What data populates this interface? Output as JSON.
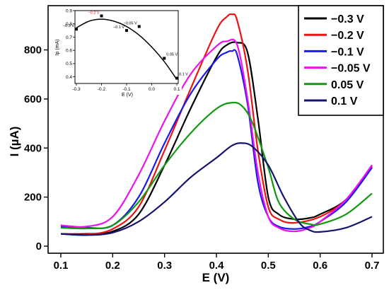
{
  "chart_data": [
    {
      "type": "line",
      "xlabel": "E (V)",
      "ylabel": "I (µA)",
      "xlim": [
        0.1,
        0.7
      ],
      "ylim": [
        0,
        940
      ],
      "xticks": [
        0.1,
        0.2,
        0.3,
        0.4,
        0.5,
        0.6,
        0.7
      ],
      "xtick_labels": [
        "0.1",
        "0.2",
        "0.3",
        "0.4",
        "0.5",
        "0.6",
        "0.7"
      ],
      "yticks": [
        0,
        200,
        400,
        600,
        800
      ],
      "ytick_labels": [
        "0",
        "200",
        "400",
        "600",
        "800"
      ],
      "grid": false,
      "legend_position": "top-right",
      "series": [
        {
          "name": "−0.3 V",
          "color": "#000000",
          "x": [
            0.1,
            0.15,
            0.2,
            0.25,
            0.3,
            0.35,
            0.4,
            0.42,
            0.44,
            0.46,
            0.48,
            0.5,
            0.52,
            0.55,
            0.58,
            0.6,
            0.65,
            0.7
          ],
          "y": [
            50,
            50,
            60,
            130,
            330,
            560,
            770,
            820,
            830,
            790,
            520,
            200,
            130,
            110,
            115,
            130,
            190,
            330
          ]
        },
        {
          "name": "−0.2 V",
          "color": "#ee1111",
          "x": [
            0.1,
            0.15,
            0.2,
            0.25,
            0.3,
            0.35,
            0.4,
            0.42,
            0.43,
            0.44,
            0.46,
            0.48,
            0.5,
            0.52,
            0.55,
            0.6,
            0.65,
            0.7
          ],
          "y": [
            50,
            48,
            70,
            160,
            390,
            640,
            880,
            935,
            945,
            920,
            720,
            390,
            160,
            110,
            95,
            120,
            190,
            325
          ]
        },
        {
          "name": "−0.1 V",
          "color": "#1a1aee",
          "x": [
            0.1,
            0.15,
            0.2,
            0.25,
            0.3,
            0.35,
            0.4,
            0.42,
            0.43,
            0.44,
            0.46,
            0.48,
            0.5,
            0.52,
            0.55,
            0.58,
            0.6,
            0.65,
            0.7
          ],
          "y": [
            80,
            75,
            85,
            200,
            420,
            620,
            760,
            790,
            795,
            780,
            580,
            260,
            120,
            80,
            70,
            80,
            100,
            180,
            320
          ]
        },
        {
          "name": "−0.05 V",
          "color": "#ee11ee",
          "x": [
            0.1,
            0.15,
            0.2,
            0.25,
            0.3,
            0.35,
            0.4,
            0.42,
            0.44,
            0.46,
            0.48,
            0.5,
            0.52,
            0.55,
            0.58,
            0.6,
            0.65,
            0.7
          ],
          "y": [
            85,
            80,
            120,
            290,
            510,
            700,
            815,
            835,
            820,
            600,
            300,
            120,
            75,
            60,
            75,
            100,
            190,
            330
          ]
        },
        {
          "name": "0.05 V",
          "color": "#119911",
          "x": [
            0.1,
            0.15,
            0.2,
            0.25,
            0.3,
            0.35,
            0.4,
            0.43,
            0.45,
            0.47,
            0.5,
            0.52,
            0.55,
            0.58,
            0.6,
            0.65,
            0.7
          ],
          "y": [
            75,
            72,
            85,
            180,
            330,
            460,
            560,
            585,
            570,
            500,
            320,
            180,
            110,
            90,
            90,
            130,
            215
          ]
        },
        {
          "name": "0.1 V",
          "color": "#141470",
          "x": [
            0.1,
            0.15,
            0.2,
            0.25,
            0.3,
            0.35,
            0.4,
            0.43,
            0.45,
            0.47,
            0.5,
            0.53,
            0.56,
            0.58,
            0.6,
            0.65,
            0.7
          ],
          "y": [
            50,
            45,
            55,
            100,
            180,
            280,
            360,
            410,
            420,
            405,
            330,
            200,
            95,
            65,
            58,
            75,
            120
          ]
        }
      ]
    },
    {
      "type": "scatter",
      "inset": true,
      "position": "top-left",
      "xlabel": "E (V)",
      "ylabel": "Ip (mA)",
      "xlim": [
        -0.3,
        0.1
      ],
      "ylim": [
        0.35,
        0.9
      ],
      "xticks": [
        -0.3,
        -0.2,
        -0.1,
        0.0,
        0.1
      ],
      "xtick_labels": [
        "-0.3",
        "-0.2",
        "-0.1",
        "0.0",
        "0.1"
      ],
      "yticks": [
        0.4,
        0.5,
        0.6,
        0.7,
        0.8,
        0.9
      ],
      "ytick_labels": [
        "0.4",
        "0.5",
        "0.6",
        "0.7",
        "0.8",
        "0.9"
      ],
      "points": [
        {
          "x": -0.3,
          "y": 0.76,
          "label": "−0.3 V",
          "color": "#000000"
        },
        {
          "x": -0.2,
          "y": 0.86,
          "label": "−0.2 V",
          "color": "#ee1111"
        },
        {
          "x": -0.1,
          "y": 0.75,
          "label": "−0.1 V",
          "color": "#000000"
        },
        {
          "x": -0.05,
          "y": 0.78,
          "label": "−0.05 V",
          "color": "#000000"
        },
        {
          "x": 0.05,
          "y": 0.54,
          "label": "0.05 V",
          "color": "#000000"
        },
        {
          "x": 0.1,
          "y": 0.39,
          "label": "0.1 V",
          "color": "#000000"
        }
      ],
      "fit_curve": {
        "x": [
          -0.3,
          -0.25,
          -0.2,
          -0.15,
          -0.1,
          -0.05,
          0.0,
          0.05,
          0.1
        ],
        "y": [
          0.77,
          0.82,
          0.835,
          0.82,
          0.78,
          0.715,
          0.625,
          0.515,
          0.38
        ]
      }
    }
  ]
}
